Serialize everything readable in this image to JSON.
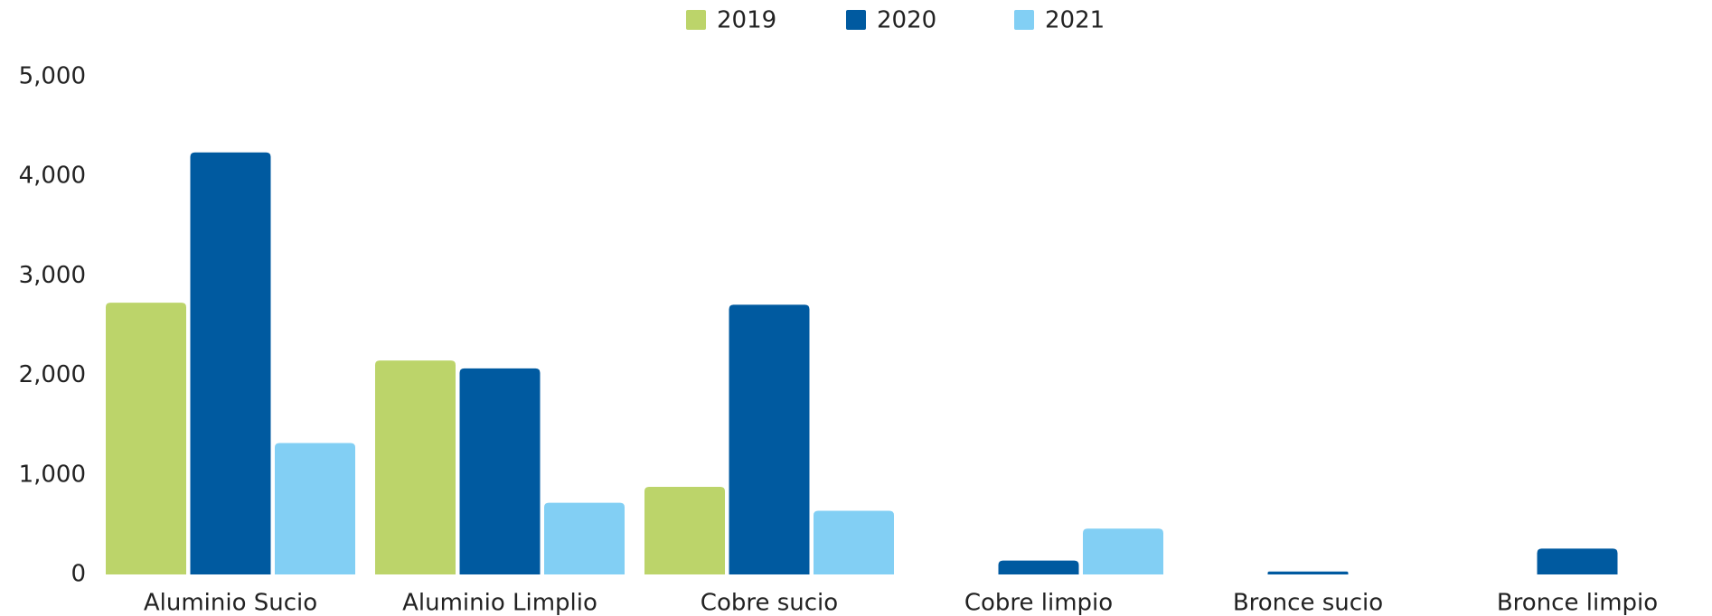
{
  "chart_data": {
    "type": "bar",
    "categories": [
      "Aluminio Sucio",
      "Aluminio Limplio",
      "Cobre sucio",
      "Cobre limpio",
      "Bronce sucio",
      "Bronce limpio"
    ],
    "series": [
      {
        "name": "2019",
        "color": "#bcd46a",
        "values": [
          2730,
          2150,
          880,
          null,
          null,
          null
        ]
      },
      {
        "name": "2020",
        "color": "#005aa0",
        "values": [
          4240,
          2070,
          2710,
          140,
          30,
          260
        ]
      },
      {
        "name": "2021",
        "color": "#82cff4",
        "values": [
          1320,
          720,
          640,
          460,
          null,
          null
        ]
      }
    ],
    "ylim": [
      0,
      5000
    ],
    "yticks": [
      0,
      {
        "value": 1000,
        "label": "1,000"
      },
      {
        "value": 2000,
        "label": "2,000"
      },
      {
        "value": 3000,
        "label": "3,000"
      },
      {
        "value": 4000,
        "label": "4,000"
      },
      {
        "value": 5000,
        "label": "5,000"
      }
    ],
    "legend": "top"
  }
}
